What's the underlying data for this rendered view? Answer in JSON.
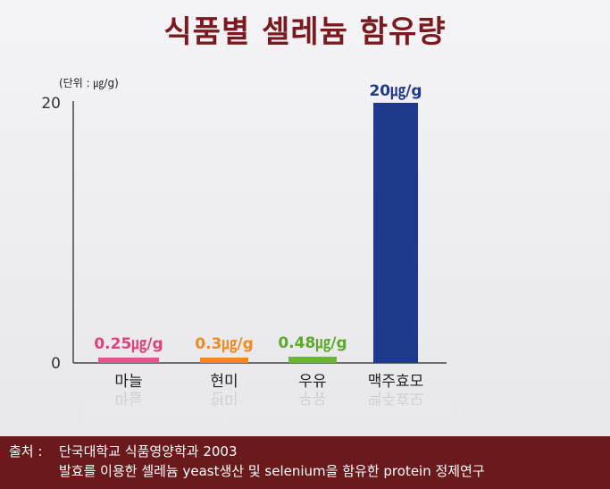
{
  "chart_data": {
    "type": "bar",
    "title": "식품별 셀레늄 함유량",
    "unit_label": "(단위 : ㎍/g)",
    "categories": [
      "마늘",
      "현미",
      "우유",
      "맥주효모"
    ],
    "values": [
      0.25,
      0.3,
      0.48,
      20
    ],
    "data_labels": [
      "0.25㎍/g",
      "0.3㎍/g",
      "0.48㎍/g",
      "20㎍/g"
    ],
    "colors": [
      "#e8528a",
      "#f08a1e",
      "#6bb535",
      "#1f3a8c"
    ],
    "label_colors": [
      "#e0407a",
      "#f08a1e",
      "#5ca82a",
      "#1f3a8c"
    ],
    "yticks": [
      0,
      20
    ],
    "ylim": [
      0,
      20
    ],
    "grid": false
  },
  "source": {
    "label": "출처 :",
    "line1": "단국대학교 식품영양학과 2003",
    "line2": "발효를 이용한 셀레늄 yeast생산 및 selenium을 함유한 protein 정제연구"
  }
}
